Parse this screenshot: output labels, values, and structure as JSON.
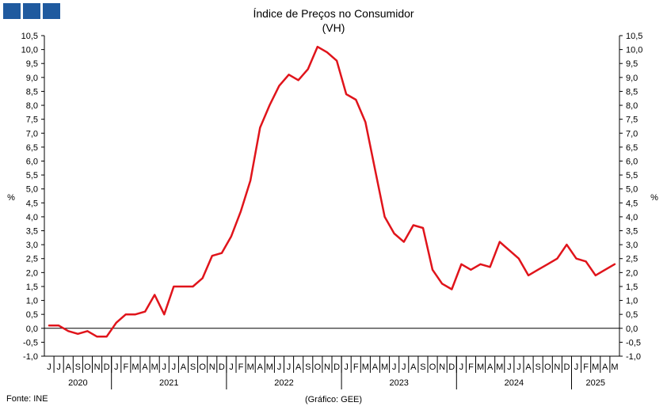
{
  "header": {
    "title": "Índice de Preços no Consumidor",
    "subtitle": "(VH)"
  },
  "footer": {
    "source": "Fonte: INE",
    "credit": "(Gráfico: GEE)"
  },
  "colors": {
    "series": "#e0141b",
    "logo": "#1f5a9f",
    "axis": "#000000"
  },
  "chart_data": {
    "type": "line",
    "title": "Índice de Preços no Consumidor",
    "subtitle": "(VH)",
    "ylabel": "%",
    "y2label": "%",
    "ylim": [
      -1.0,
      10.5
    ],
    "ytick_labels": [
      "-1,0",
      "-0,5",
      "0,0",
      "0,5",
      "1,0",
      "1,5",
      "2,0",
      "2,5",
      "3,0",
      "3,5",
      "4,0",
      "4,5",
      "5,0",
      "5,5",
      "6,0",
      "6,5",
      "7,0",
      "7,5",
      "8,0",
      "8,5",
      "9,0",
      "9,5",
      "10,0",
      "10,5"
    ],
    "grid": false,
    "month_labels": [
      "J",
      "J",
      "A",
      "S",
      "O",
      "N",
      "D",
      "J",
      "F",
      "M",
      "A",
      "M",
      "J",
      "J",
      "A",
      "S",
      "O",
      "N",
      "D",
      "J",
      "F",
      "M",
      "A",
      "M",
      "J",
      "J",
      "A",
      "S",
      "O",
      "N",
      "D",
      "J",
      "F",
      "M",
      "A",
      "M",
      "J",
      "J",
      "A",
      "S",
      "O",
      "N",
      "D",
      "J",
      "F",
      "M",
      "A",
      "M",
      "J",
      "J",
      "A",
      "S",
      "O",
      "N",
      "D",
      "J",
      "F",
      "M",
      "A",
      "M"
    ],
    "years": [
      {
        "label": "2020",
        "months": 7
      },
      {
        "label": "2021",
        "months": 12
      },
      {
        "label": "2022",
        "months": 12
      },
      {
        "label": "2023",
        "months": 12
      },
      {
        "label": "2024",
        "months": 12
      },
      {
        "label": "2025",
        "months": 5
      }
    ],
    "x": [
      "2020-06",
      "2020-07",
      "2020-08",
      "2020-09",
      "2020-10",
      "2020-11",
      "2020-12",
      "2021-01",
      "2021-02",
      "2021-03",
      "2021-04",
      "2021-05",
      "2021-06",
      "2021-07",
      "2021-08",
      "2021-09",
      "2021-10",
      "2021-11",
      "2021-12",
      "2022-01",
      "2022-02",
      "2022-03",
      "2022-04",
      "2022-05",
      "2022-06",
      "2022-07",
      "2022-08",
      "2022-09",
      "2022-10",
      "2022-11",
      "2022-12",
      "2023-01",
      "2023-02",
      "2023-03",
      "2023-04",
      "2023-05",
      "2023-06",
      "2023-07",
      "2023-08",
      "2023-09",
      "2023-10",
      "2023-11",
      "2023-12",
      "2024-01",
      "2024-02",
      "2024-03",
      "2024-04",
      "2024-05",
      "2024-06",
      "2024-07",
      "2024-08",
      "2024-09",
      "2024-10",
      "2024-11",
      "2024-12",
      "2025-01",
      "2025-02",
      "2025-03",
      "2025-04",
      "2025-05"
    ],
    "series": [
      {
        "values": [
          0.1,
          0.1,
          -0.1,
          -0.2,
          -0.1,
          -0.3,
          -0.3,
          0.2,
          0.5,
          0.5,
          0.6,
          1.2,
          0.5,
          1.5,
          1.5,
          1.5,
          1.8,
          2.6,
          2.7,
          3.3,
          4.2,
          5.3,
          7.2,
          8.0,
          8.7,
          9.1,
          8.9,
          9.3,
          10.1,
          9.9,
          9.6,
          8.4,
          8.2,
          7.4,
          5.7,
          4.0,
          3.4,
          3.1,
          3.7,
          3.6,
          2.1,
          1.6,
          1.4,
          2.3,
          2.1,
          2.3,
          2.2,
          3.1,
          2.8,
          2.5,
          1.9,
          2.1,
          2.3,
          2.5,
          3.0,
          2.5,
          2.4,
          1.9,
          2.1,
          2.3
        ]
      }
    ]
  }
}
